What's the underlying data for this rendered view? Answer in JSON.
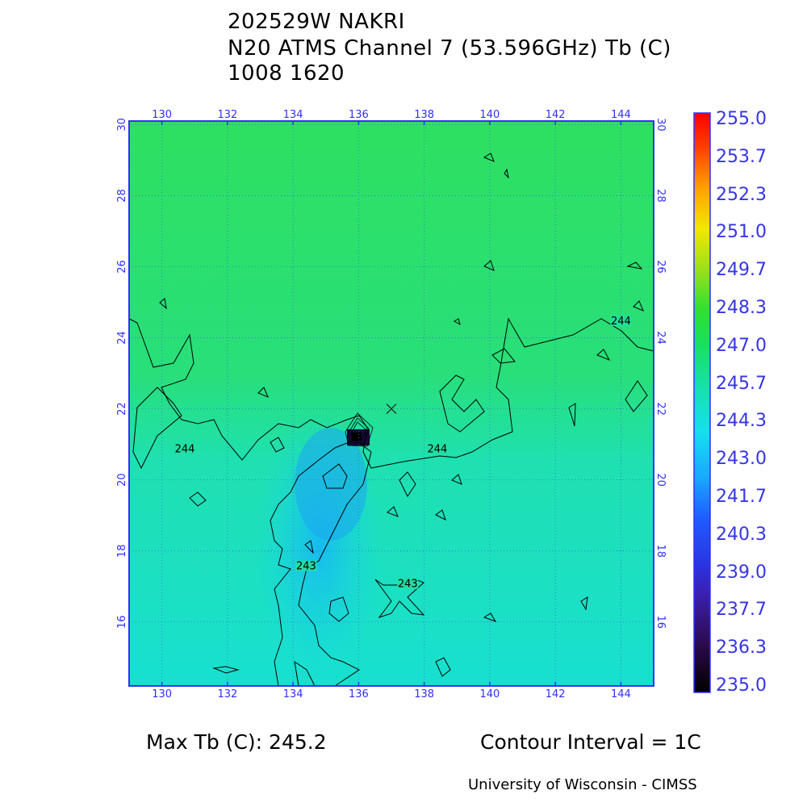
{
  "header": {
    "line1": "202529W NAKRI",
    "line2": "N20 ATMS Channel 7 (53.596GHz) Tb (C)",
    "line3": "1008 1620"
  },
  "map": {
    "lon_ticks": [
      "130",
      "132",
      "134",
      "136",
      "138",
      "140",
      "142",
      "144"
    ],
    "lat_ticks": [
      "16",
      "18",
      "20",
      "22",
      "24",
      "26",
      "28",
      "30"
    ],
    "lon_range": [
      129,
      145
    ],
    "lat_range": [
      14.2,
      30.1
    ],
    "center_marker": {
      "lon": 137.0,
      "lat": 22.0
    },
    "contour_labels": [
      {
        "text": "244",
        "lon": 130.7,
        "lat": 20.8
      },
      {
        "text": "244",
        "lon": 138.4,
        "lat": 20.8
      },
      {
        "text": "244",
        "lon": 144.0,
        "lat": 24.4
      },
      {
        "text": "243",
        "lon": 134.4,
        "lat": 17.5
      },
      {
        "text": "243",
        "lon": 137.5,
        "lat": 17.0
      }
    ]
  },
  "colorbar": {
    "labels": [
      "255.0",
      "253.7",
      "252.3",
      "251.0",
      "249.7",
      "248.3",
      "247.0",
      "245.7",
      "244.3",
      "243.0",
      "241.7",
      "240.3",
      "239.0",
      "237.7",
      "236.3",
      "235.0"
    ],
    "min": 235.0,
    "max": 255.0
  },
  "footer": {
    "max_tb": "Max Tb (C): 245.2",
    "contour_interval": "Contour Interval = 1C",
    "credit": "University of Wisconsin - CIMSS"
  }
}
